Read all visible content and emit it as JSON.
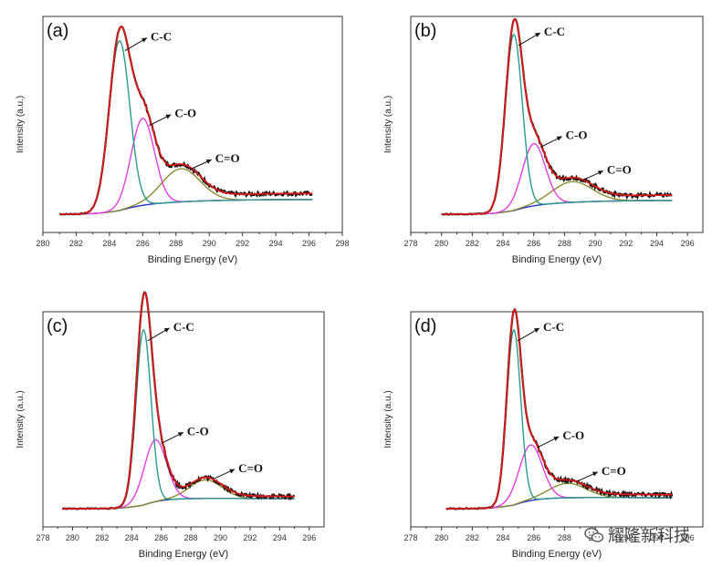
{
  "chart_data": [
    {
      "type": "line",
      "panel": "(a)",
      "xlabel": "Binding Energy (eV)",
      "ylabel": "Intensity (a.u.)",
      "xlim": [
        280,
        298
      ],
      "xticks": [
        280,
        282,
        284,
        286,
        288,
        290,
        292,
        294,
        296,
        298
      ],
      "data_range": [
        281,
        296.2
      ],
      "grid": false,
      "peaks": [
        {
          "name": "C-C",
          "center": 284.6,
          "height": 0.82,
          "sigma": 0.62
        },
        {
          "name": "C-O",
          "center": 286.0,
          "height": 0.42,
          "sigma": 0.7
        },
        {
          "name": "C=O",
          "center": 288.3,
          "height": 0.16,
          "sigma": 1.15
        }
      ],
      "tail": {
        "height": 0.09,
        "k": 0.07
      },
      "series": [
        {
          "name": "measured",
          "color": "#111111"
        },
        {
          "name": "fitted envelope",
          "color": "#dd1a1a"
        },
        {
          "color": "#2a9b8a"
        },
        {
          "color": "#e23fe0"
        },
        {
          "color": "#8a8a30"
        },
        {
          "name": "background",
          "color": "#2233cc"
        }
      ]
    },
    {
      "type": "line",
      "panel": "(b)",
      "xlabel": "Binding Energy (eV)",
      "ylabel": "Intensity (a.u.)",
      "xlim": [
        278,
        297
      ],
      "xticks": [
        278,
        280,
        282,
        284,
        286,
        288,
        290,
        292,
        294,
        296
      ],
      "data_range": [
        280,
        295
      ],
      "grid": false,
      "peaks": [
        {
          "name": "C-C",
          "center": 284.7,
          "height": 0.85,
          "sigma": 0.55
        },
        {
          "name": "C-O",
          "center": 286.0,
          "height": 0.3,
          "sigma": 0.75
        },
        {
          "name": "C=O",
          "center": 288.5,
          "height": 0.1,
          "sigma": 1.3
        }
      ],
      "tail": {
        "height": 0.08,
        "k": 0.07
      },
      "series": [
        {
          "name": "measured",
          "color": "#111111"
        },
        {
          "name": "fitted envelope",
          "color": "#dd1a1a"
        },
        {
          "color": "#2a9b8a"
        },
        {
          "color": "#e23fe0"
        },
        {
          "color": "#8a8a30"
        },
        {
          "name": "background",
          "color": "#2233cc"
        }
      ]
    },
    {
      "type": "line",
      "panel": "(c)",
      "xlabel": "Binding Energy (eV)",
      "ylabel": "Intensity (a.u.)",
      "xlim": [
        278,
        297
      ],
      "xticks": [
        278,
        280,
        282,
        284,
        286,
        288,
        290,
        292,
        294,
        296
      ],
      "data_range": [
        279.3,
        295
      ],
      "grid": false,
      "peaks": [
        {
          "name": "C-C",
          "center": 284.8,
          "height": 0.85,
          "sigma": 0.5
        },
        {
          "name": "C-O",
          "center": 285.6,
          "height": 0.3,
          "sigma": 0.75
        },
        {
          "name": "C=O",
          "center": 289.0,
          "height": 0.09,
          "sigma": 1.1
        }
      ],
      "tail": {
        "height": 0.03,
        "k": 0.25
      },
      "series": [
        {
          "name": "measured",
          "color": "#111111"
        },
        {
          "name": "fitted envelope",
          "color": "#dd1a1a"
        },
        {
          "color": "#2a9b8a"
        },
        {
          "color": "#e23fe0"
        },
        {
          "color": "#8a8a30"
        },
        {
          "name": "background",
          "color": "#2233cc"
        }
      ]
    },
    {
      "type": "line",
      "panel": "(d)",
      "xlabel": "Binding Energy (eV)",
      "ylabel": "Intensity (a.u.)",
      "xlim": [
        278,
        297
      ],
      "xticks": [
        278,
        280,
        282,
        284,
        286,
        288,
        290,
        292,
        294,
        296
      ],
      "data_range": [
        280.3,
        295
      ],
      "grid": false,
      "peaks": [
        {
          "name": "C-C",
          "center": 284.7,
          "height": 0.85,
          "sigma": 0.45
        },
        {
          "name": "C-O",
          "center": 285.8,
          "height": 0.27,
          "sigma": 0.75
        },
        {
          "name": "C=O",
          "center": 288.2,
          "height": 0.07,
          "sigma": 1.2
        }
      ],
      "tail": {
        "height": 0.04,
        "k": 0.2
      },
      "series": [
        {
          "name": "measured",
          "color": "#111111"
        },
        {
          "name": "fitted envelope",
          "color": "#dd1a1a"
        },
        {
          "color": "#2a9b8a"
        },
        {
          "color": "#e23fe0"
        },
        {
          "color": "#8a8a30"
        },
        {
          "name": "background",
          "color": "#2233cc"
        }
      ]
    }
  ],
  "watermark": {
    "text": "耀隆新科技",
    "icon": "wechat-icon"
  }
}
